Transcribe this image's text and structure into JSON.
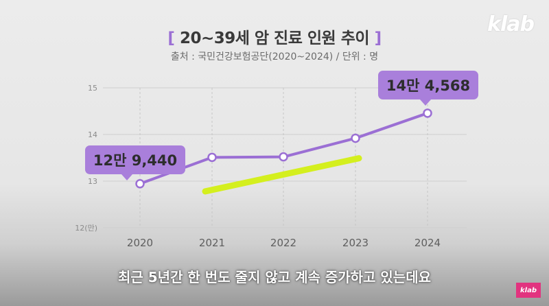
{
  "title": {
    "bracket_open": "[",
    "text": "20~39세 암 진료 인원 추이",
    "bracket_close": "]"
  },
  "source": "출처 : 국민건강보험공단(2020~2024) / 단위 : 명",
  "logo": "klab",
  "logo_small": "klab",
  "subtitle": "최근 5년간 한 번도 줄지 않고 계속 증가하고 있는데요",
  "colors": {
    "line": "#9b6fd4",
    "callout": "#a97fdb",
    "highlight": "#d4ef1e"
  },
  "chart_data": {
    "type": "line",
    "title": "20~39세 암 진료 인원 추이",
    "x": [
      "2020",
      "2021",
      "2022",
      "2023",
      "2024"
    ],
    "series": [
      {
        "values": [
          12.944,
          13.51,
          13.52,
          13.92,
          14.4568
        ]
      }
    ],
    "ylim": [
      12,
      15
    ],
    "yticks": [
      "12(만)",
      "13",
      "14",
      "15"
    ],
    "grid": true,
    "annotations": [
      {
        "x": "2020",
        "label": "12만 9,440"
      },
      {
        "x": "2024",
        "label": "14만 4,568"
      }
    ],
    "highlight_line": {
      "x_start": 2021,
      "y_start": 12.78,
      "x_end": 2023,
      "y_end": 13.49
    }
  }
}
